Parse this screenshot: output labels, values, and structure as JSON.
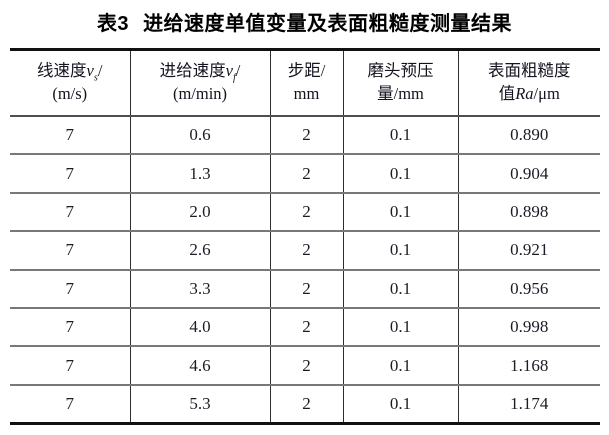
{
  "title": {
    "tag": "表3",
    "text": "进给速度单值变量及表面粗糙度测量结果"
  },
  "table": {
    "headers": {
      "linear_speed": {
        "label": "线速度",
        "symbol": "v",
        "symbol_sub": "s",
        "slash": "/",
        "unit": "(m/s)"
      },
      "feed_speed": {
        "label": "进给速度",
        "symbol": "v",
        "symbol_sub": "f",
        "slash": "/",
        "unit": "(m/min)"
      },
      "step": {
        "line1": "步距/",
        "line2": "mm"
      },
      "preload": {
        "line1": "磨头预压",
        "line2": "量/mm"
      },
      "roughness": {
        "line1": "表面粗糙度",
        "line2_pre": "值",
        "symbol": "Ra",
        "line2_post": "/μm"
      }
    },
    "rows": [
      [
        "7",
        "0.6",
        "2",
        "0.1",
        "0.890"
      ],
      [
        "7",
        "1.3",
        "2",
        "0.1",
        "0.904"
      ],
      [
        "7",
        "2.0",
        "2",
        "0.1",
        "0.898"
      ],
      [
        "7",
        "2.6",
        "2",
        "0.1",
        "0.921"
      ],
      [
        "7",
        "3.3",
        "2",
        "0.1",
        "0.956"
      ],
      [
        "7",
        "4.0",
        "2",
        "0.1",
        "0.998"
      ],
      [
        "7",
        "4.6",
        "2",
        "0.1",
        "1.168"
      ],
      [
        "7",
        "5.3",
        "2",
        "0.1",
        "1.174"
      ]
    ]
  },
  "colors": {
    "text": "#1b1b26",
    "rule_heavy": "#111111",
    "rule_row": "#787878",
    "rule_column": "#2e2e2e"
  }
}
